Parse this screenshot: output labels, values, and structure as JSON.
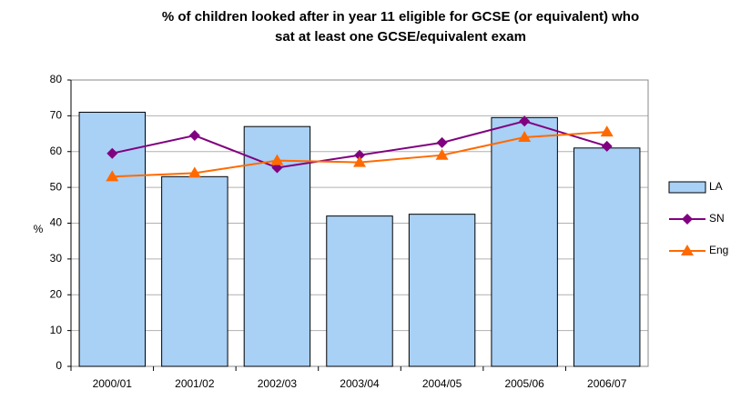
{
  "chart_data": {
    "type": "bar",
    "title": "% of children looked after in year 11 eligible for GCSE (or equivalent) who sat at least one GCSE/equivalent exam",
    "y_label": "%",
    "categories": [
      "2000/01",
      "2001/02",
      "2002/03",
      "2003/04",
      "2004/05",
      "2005/06",
      "2006/07"
    ],
    "series": [
      {
        "name": "LA",
        "type": "bar",
        "color": "#a9d0f5",
        "values": [
          71,
          53,
          67,
          42,
          42.5,
          69.5,
          61
        ]
      },
      {
        "name": "SN",
        "type": "line",
        "marker": "diamond",
        "color": "#800080",
        "values": [
          59.5,
          64.5,
          55.5,
          59,
          62.5,
          68.5,
          61.5
        ]
      },
      {
        "name": "Eng",
        "type": "line",
        "marker": "triangle",
        "color": "#ff6a00",
        "values": [
          53,
          54,
          57.5,
          57,
          59,
          64,
          65.5
        ]
      }
    ],
    "ylim": [
      0,
      80
    ],
    "yticks": [
      0,
      10,
      20,
      30,
      40,
      50,
      60,
      70,
      80
    ],
    "grid": true,
    "legend": "right"
  }
}
